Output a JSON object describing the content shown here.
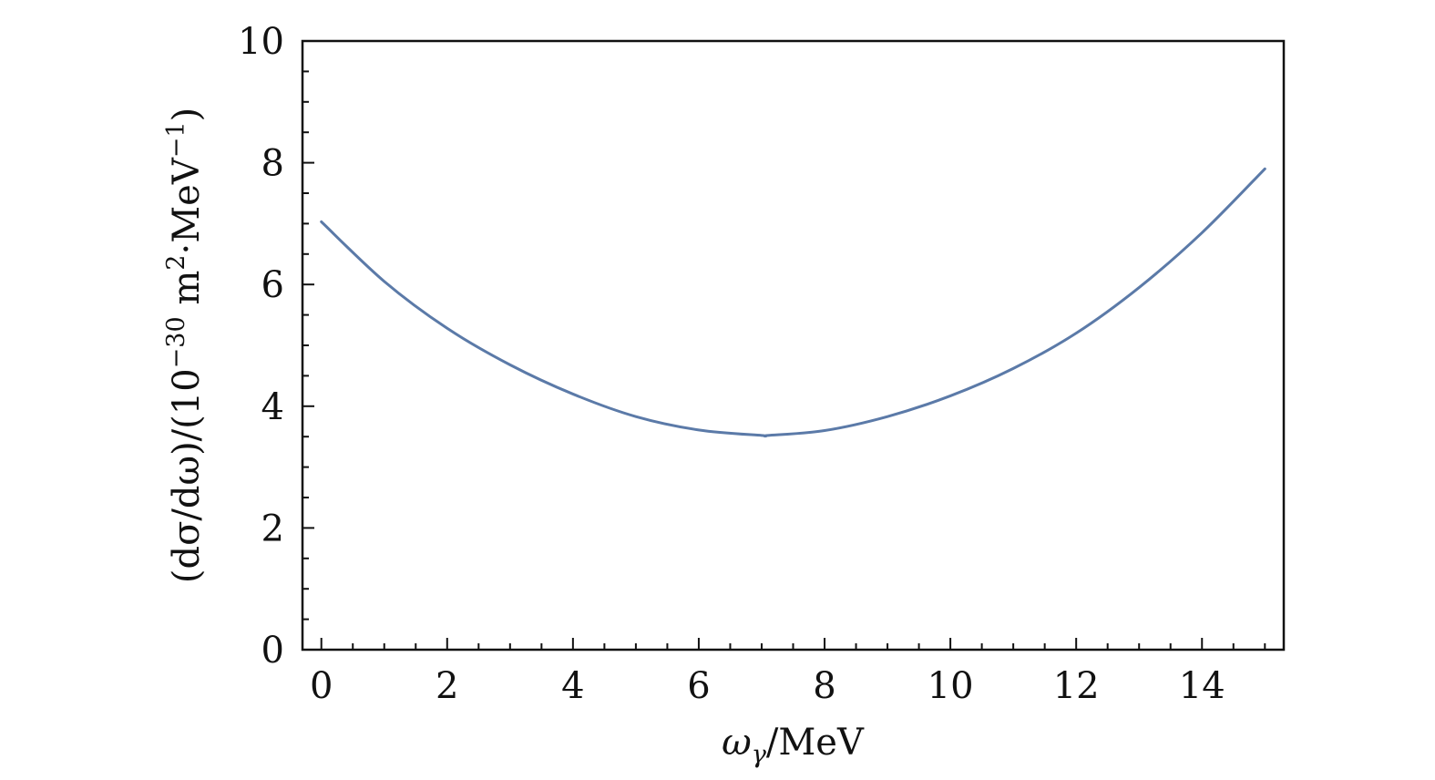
{
  "chart_data": {
    "type": "line",
    "xlabel": "ωγ/MeV",
    "xlabel_parts": {
      "main": "ω",
      "sub": "γ",
      "rest": "/MeV"
    },
    "ylabel": "(dσ/dω)/(10−30 m2·MeV−1)",
    "ylabel_parts": {
      "a": "(dσ/dω)/(10",
      "sup1": "−30",
      "b": " m",
      "sup2": "2",
      "c": "·MeV",
      "sup3": "−1",
      "d": ")"
    },
    "xlim": [
      -0.3,
      15.3
    ],
    "ylim": [
      0,
      10
    ],
    "x_ticks": [
      0,
      2,
      4,
      6,
      8,
      10,
      12,
      14
    ],
    "x_tick_labels": [
      "0",
      "2",
      "4",
      "6",
      "8",
      "10",
      "12",
      "14"
    ],
    "y_ticks": [
      0,
      2,
      4,
      6,
      8,
      10
    ],
    "y_tick_labels": [
      "0",
      "2",
      "4",
      "6",
      "8",
      "10"
    ],
    "grid": false,
    "series": [
      {
        "color": "#5b7aa8",
        "x": [
          0,
          1,
          2,
          3,
          4,
          5,
          6,
          7,
          7.1,
          8,
          9,
          10,
          11,
          12,
          13,
          14,
          15
        ],
        "y": [
          7.03,
          6.05,
          5.28,
          4.68,
          4.2,
          3.83,
          3.61,
          3.52,
          3.52,
          3.6,
          3.83,
          4.17,
          4.62,
          5.2,
          5.95,
          6.85,
          7.9
        ]
      }
    ]
  }
}
